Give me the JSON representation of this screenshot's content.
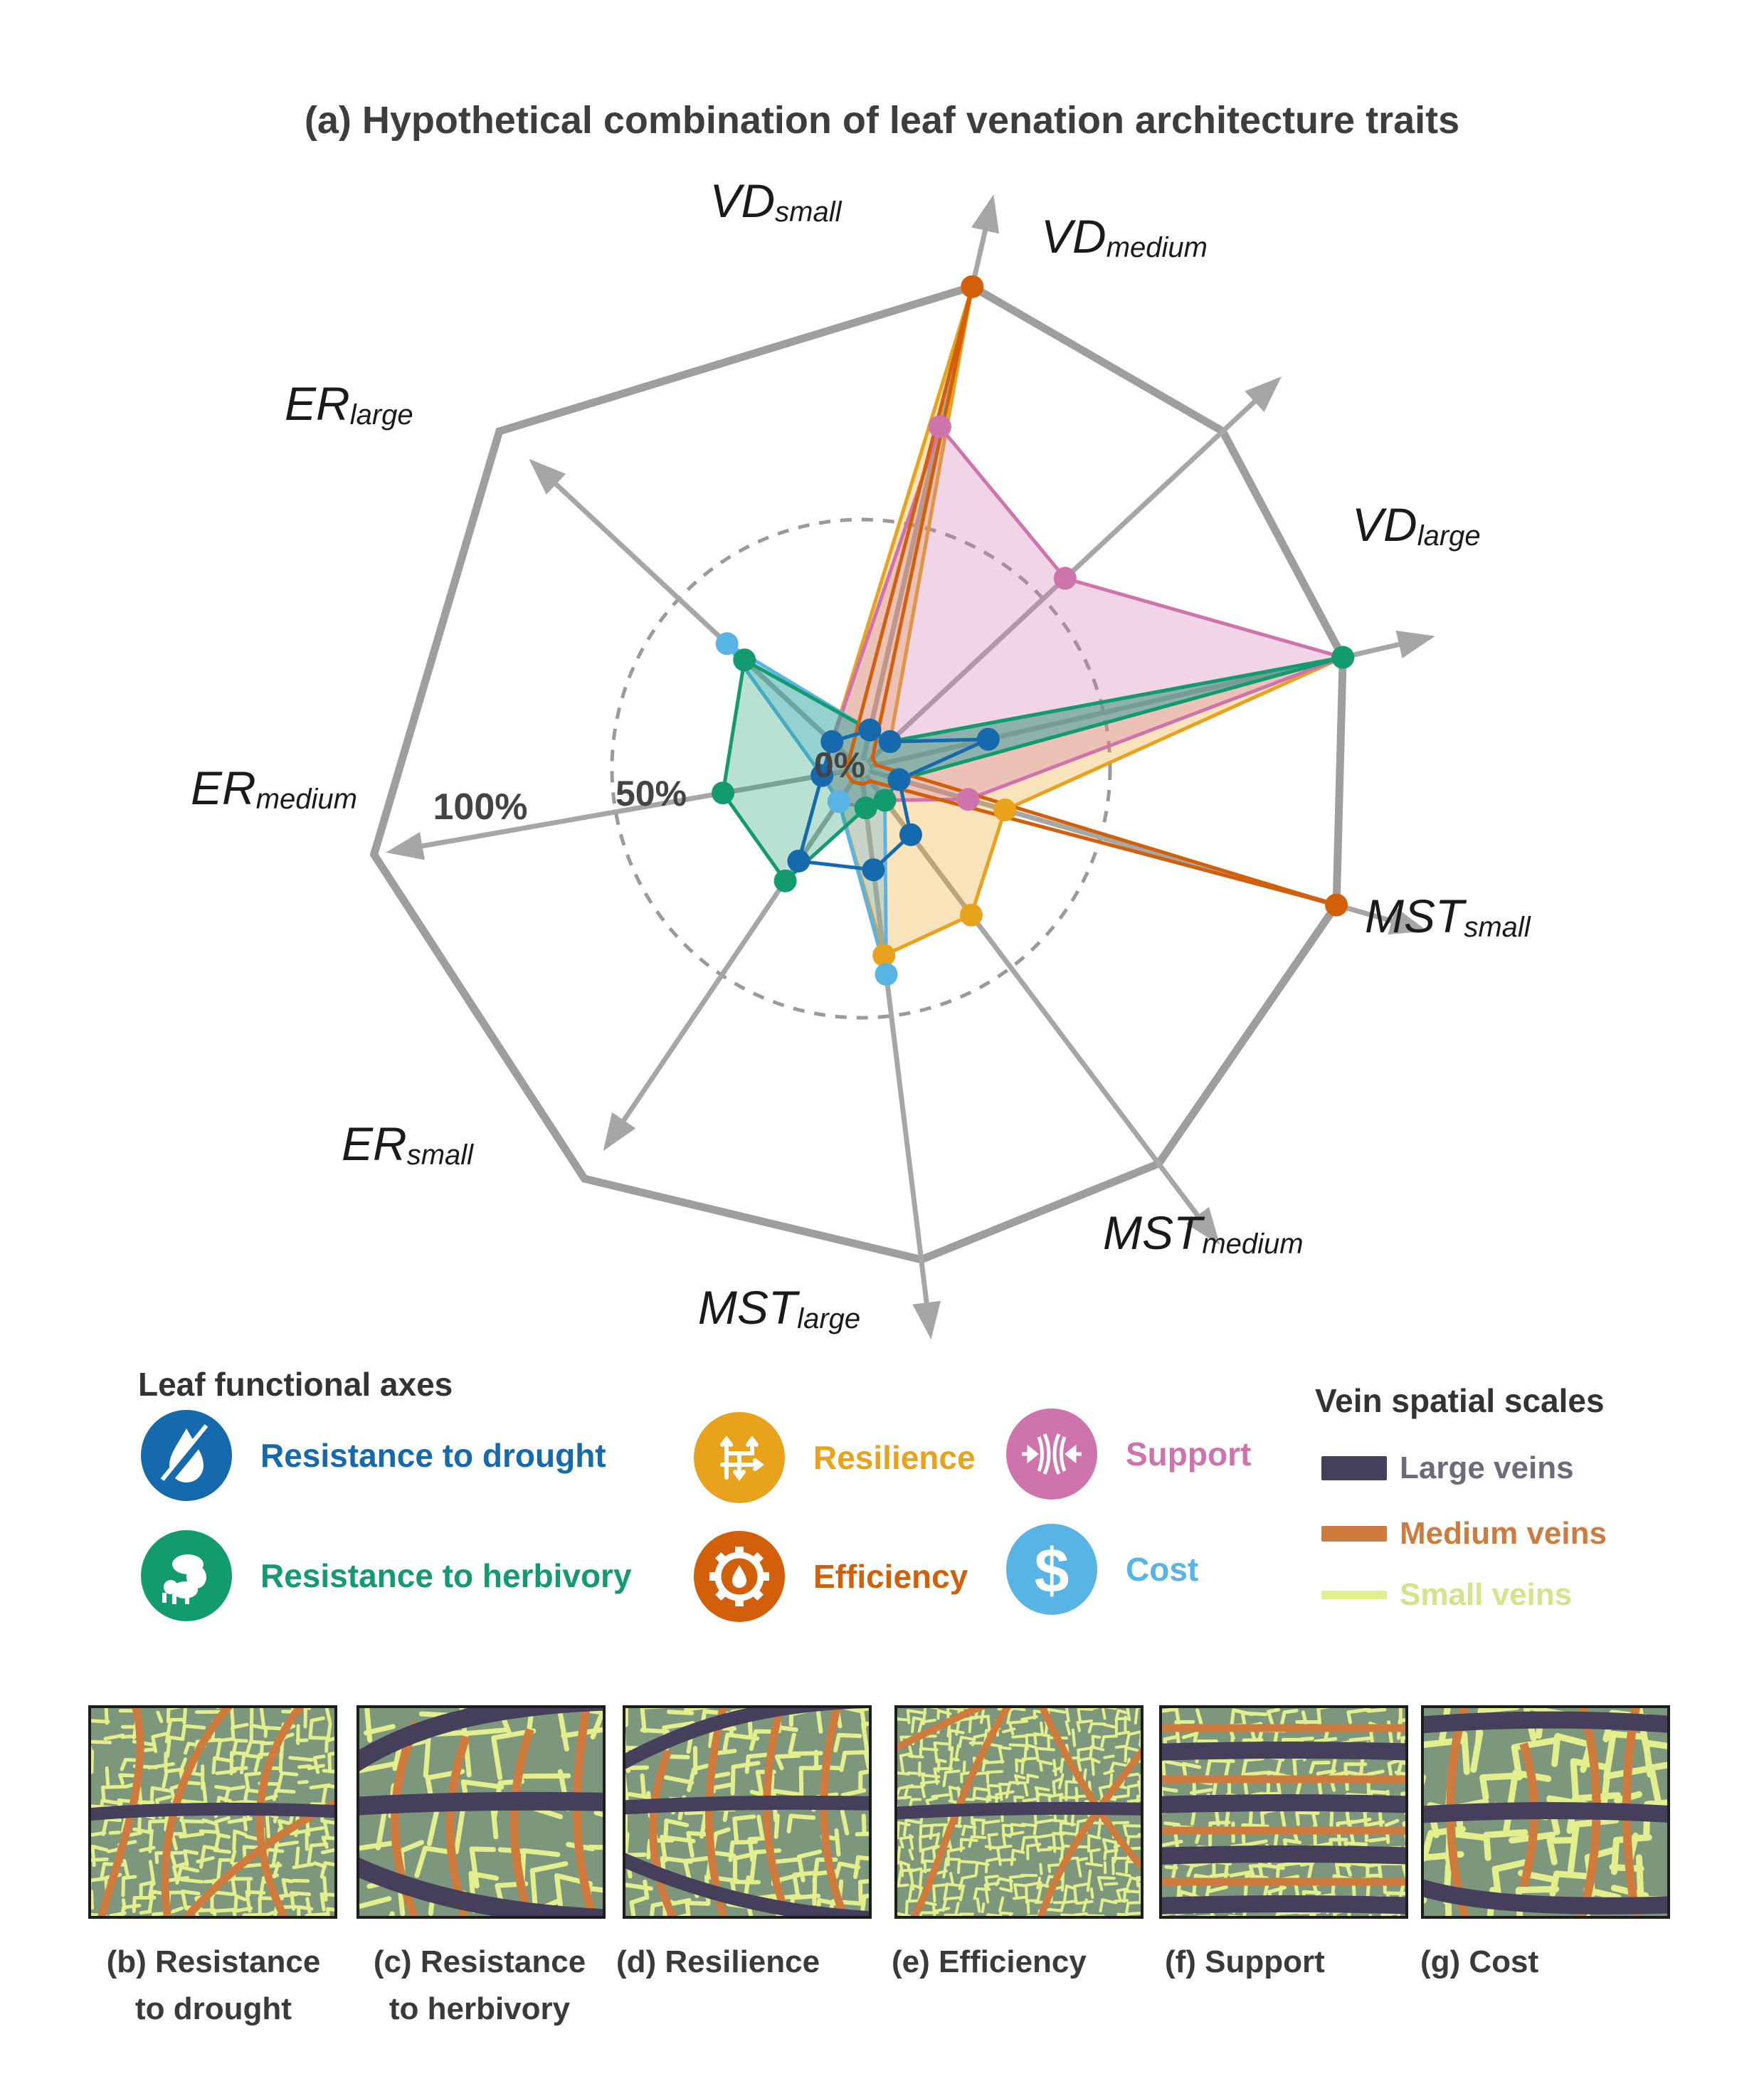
{
  "title": "(a) Hypothetical combination of leaf venation architecture traits",
  "chart_data": {
    "type": "radar",
    "axes": [
      {
        "main": "VD",
        "sub": "small"
      },
      {
        "main": "VD",
        "sub": "medium"
      },
      {
        "main": "VD",
        "sub": "large"
      },
      {
        "main": "MST",
        "sub": "small"
      },
      {
        "main": "MST",
        "sub": "medium"
      },
      {
        "main": "MST",
        "sub": "large"
      },
      {
        "main": "ER",
        "sub": "small"
      },
      {
        "main": "ER",
        "sub": "medium"
      },
      {
        "main": "ER",
        "sub": "large"
      }
    ],
    "ring_labels": {
      "center": "0%",
      "half": "50%",
      "full": "100%"
    },
    "range": [
      0,
      100
    ],
    "series": [
      {
        "name": "Resilience",
        "color": "#e9a21b",
        "fill_opacity": 0.3,
        "values": [
          100,
          5,
          100,
          28,
          35,
          36,
          5,
          5,
          5
        ]
      },
      {
        "name": "Support",
        "color": "#cf73ad",
        "fill_opacity": 0.3,
        "values": [
          70,
          55,
          100,
          20,
          5,
          5,
          5,
          5,
          5
        ]
      },
      {
        "name": "Cost",
        "color": "#58b4e5",
        "fill_opacity": 0.3,
        "values": [
          5,
          5,
          100,
          5,
          5,
          40,
          5,
          5,
          35
        ]
      },
      {
        "name": "Resistance to herbivory",
        "color": "#149a6f",
        "fill_opacity": 0.3,
        "values": [
          5,
          5,
          100,
          5,
          5,
          5,
          25,
          26,
          30
        ]
      },
      {
        "name": "Efficiency",
        "color": "#d2600b",
        "fill_opacity": 0,
        "values": [
          100,
          0,
          0,
          100,
          0,
          0,
          0,
          0,
          0
        ]
      },
      {
        "name": "Resistance to drought",
        "color": "#1569ad",
        "fill_opacity": 0,
        "values": [
          5,
          5,
          24,
          5,
          14,
          18,
          20,
          5,
          5
        ]
      }
    ]
  },
  "legend": {
    "heading": "Leaf functional axes",
    "items": [
      {
        "label": "Resistance to drought",
        "color": "#1569ad",
        "icon": "drought-icon"
      },
      {
        "label": "Resilience",
        "color": "#e9a21b",
        "icon": "resilience-icon"
      },
      {
        "label": "Support",
        "color": "#cf73ad",
        "icon": "support-icon"
      },
      {
        "label": "Resistance to herbivory",
        "color": "#149a6f",
        "icon": "herbivory-icon"
      },
      {
        "label": "Efficiency",
        "color": "#d2600b",
        "icon": "efficiency-icon"
      },
      {
        "label": "Cost",
        "color": "#58b4e5",
        "icon": "cost-icon"
      }
    ]
  },
  "vein_scales": {
    "heading": "Vein spatial scales",
    "items": [
      {
        "label": "Large veins",
        "color": "#453f5b",
        "text_color": "#6d6a7c"
      },
      {
        "label": "Medium veins",
        "color": "#cf7b3d",
        "text_color": "#cf7b3d"
      },
      {
        "label": "Small veins",
        "color": "#e3ee8d",
        "text_color": "#d5e38a"
      }
    ]
  },
  "panels": [
    {
      "line1": "(b) Resistance",
      "line2": "to drought"
    },
    {
      "line1": "(c) Resistance",
      "line2": "to herbivory"
    },
    {
      "line1": "(d) Resilience",
      "line2": ""
    },
    {
      "line1": "(e) Efficiency",
      "line2": ""
    },
    {
      "line1": "(f) Support",
      "line2": ""
    },
    {
      "line1": "(g) Cost",
      "line2": ""
    }
  ]
}
